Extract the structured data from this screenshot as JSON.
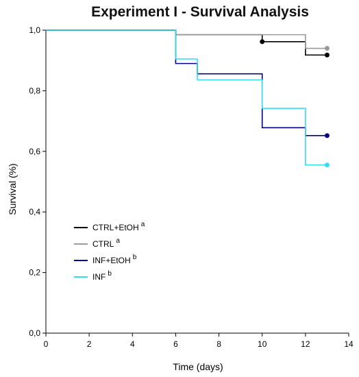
{
  "chart_data": {
    "type": "line",
    "title": "Experiment I - Survival Analysis",
    "xlabel": "Time (days)",
    "ylabel": "Survival (%)",
    "xlim": [
      0,
      14
    ],
    "ylim": [
      0.0,
      1.0
    ],
    "x_ticks": [
      "0",
      "2",
      "4",
      "6",
      "8",
      "10",
      "12",
      "14"
    ],
    "y_ticks": [
      "0,0",
      "0,2",
      "0,4",
      "0,6",
      "0,8",
      "1,0"
    ],
    "grid": false,
    "legend_position": "lower-left",
    "series": [
      {
        "name": "CTRL+EtOH",
        "sup": "a",
        "color": "#000000",
        "x": [
          0,
          6,
          10,
          12,
          13
        ],
        "y": [
          1.0,
          0.985,
          0.962,
          0.918,
          0.918
        ],
        "censored": [
          [
            10,
            0.962
          ],
          [
            13,
            0.918
          ]
        ]
      },
      {
        "name": "CTRL",
        "sup": "a",
        "color": "#999999",
        "x": [
          0,
          6,
          12,
          13
        ],
        "y": [
          1.0,
          0.985,
          0.94,
          0.94
        ],
        "censored": [
          [
            13,
            0.94
          ]
        ]
      },
      {
        "name": "INF+EtOH",
        "sup": "b",
        "color": "#00008b",
        "x": [
          0,
          6,
          7,
          10,
          12,
          13
        ],
        "y": [
          1.0,
          0.89,
          0.856,
          0.678,
          0.652,
          0.652
        ],
        "censored": [
          [
            13,
            0.652
          ]
        ]
      },
      {
        "name": "INF",
        "sup": "b",
        "color": "#33ddee",
        "x": [
          0,
          6,
          7,
          10,
          12,
          13
        ],
        "y": [
          1.0,
          0.905,
          0.836,
          0.742,
          0.555,
          0.555
        ],
        "censored": [
          [
            13,
            0.555
          ]
        ]
      }
    ]
  }
}
